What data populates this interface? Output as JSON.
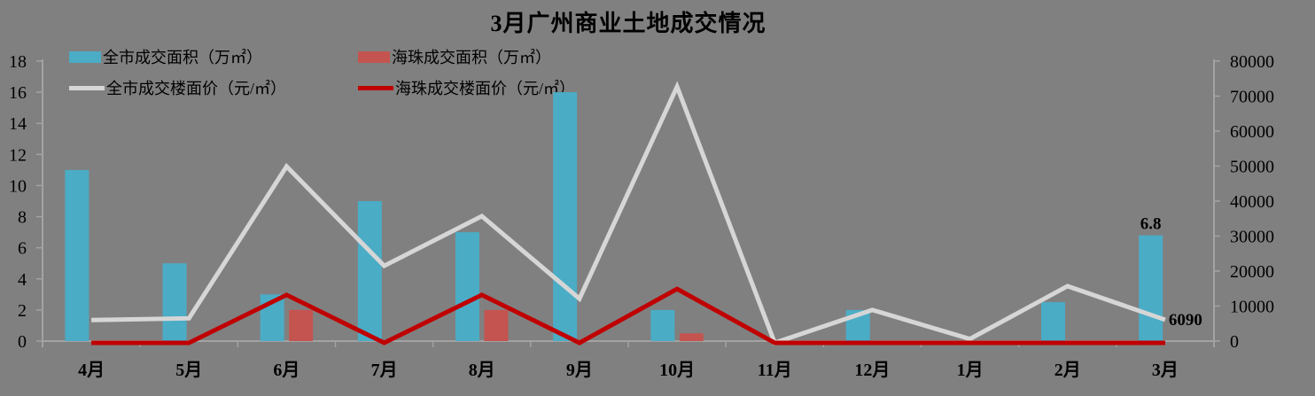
{
  "title": "3月广州商业土地成交情况",
  "colors": {
    "background": "#808080",
    "axis": "#A3A3A3",
    "text": "#000000",
    "citywide_area_blue": "#4BACC6",
    "haizhu_area_red": "#C4544F",
    "citywide_price_gray": "#D6D6D6",
    "haizhu_price_red": "#C00000"
  },
  "legend": [
    {
      "label": "全市成交面积（万㎡）",
      "type": "bar",
      "color": "#4BACC6"
    },
    {
      "label": "海珠成交面积（万㎡）",
      "type": "bar",
      "color": "#C4544F"
    },
    {
      "label": "全市成交楼面价（元/㎡）",
      "type": "line",
      "color": "#D6D6D6"
    },
    {
      "label": "海珠成交楼面价（元/㎡）",
      "type": "line",
      "color": "#C00000"
    }
  ],
  "chart_data": {
    "type": "combo",
    "title": "3月广州商业土地成交情况",
    "categories": [
      "4月",
      "5月",
      "6月",
      "7月",
      "8月",
      "9月",
      "10月",
      "11月",
      "12月",
      "1月",
      "2月",
      "3月"
    ],
    "series": [
      {
        "name": "全市成交面积（万㎡）",
        "type": "bar",
        "axis": "left",
        "color": "#4BACC6",
        "values": [
          11,
          5,
          3,
          9,
          7,
          16,
          2,
          0,
          2,
          0,
          2.5,
          6.8
        ]
      },
      {
        "name": "海珠成交面积（万㎡）",
        "type": "bar",
        "axis": "left",
        "color": "#C4544F",
        "values": [
          0,
          0,
          2,
          0,
          2,
          0,
          0.5,
          0,
          0,
          0,
          0,
          0
        ]
      },
      {
        "name": "全市成交楼面价（元/㎡）",
        "type": "line",
        "axis": "right",
        "color": "#D6D6D6",
        "values": [
          6000,
          6500,
          49900,
          21500,
          35700,
          12100,
          72700,
          0,
          8900,
          600,
          15700,
          6090
        ]
      },
      {
        "name": "海珠成交楼面价（元/㎡）",
        "type": "line",
        "axis": "right",
        "color": "#C00000",
        "values": [
          0,
          0,
          13200,
          0,
          13200,
          0,
          14900,
          0,
          0,
          0,
          0,
          0
        ]
      }
    ],
    "left_axis": {
      "ticks": [
        0,
        2,
        4,
        6,
        8,
        10,
        12,
        14,
        16,
        18
      ],
      "min": 0,
      "max": 18
    },
    "right_axis": {
      "ticks": [
        0,
        10000,
        20000,
        30000,
        40000,
        50000,
        60000,
        70000,
        80000
      ],
      "min": 0,
      "max": 80000
    },
    "grid": false,
    "legend_position": "top-left",
    "annotations": [
      {
        "text": "6.8",
        "series_index": 0,
        "category_index": 11,
        "placement": "above-bar"
      },
      {
        "text": "6090",
        "series_index": 2,
        "category_index": 11,
        "placement": "right-of-point"
      }
    ]
  }
}
